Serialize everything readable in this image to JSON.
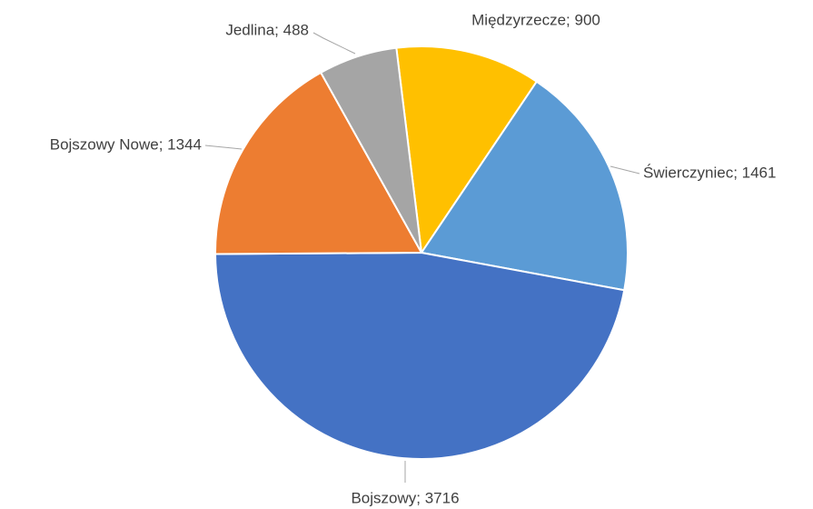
{
  "chart_data": {
    "type": "pie",
    "categories": [
      "Międzyrzecze",
      "Świerczyniec",
      "Bojszowy",
      "Bojszowy Nowe",
      "Jedlina"
    ],
    "values": [
      900,
      1461,
      3716,
      1344,
      488
    ],
    "value_labels": [
      "Międzyrzecze; 900",
      "Świerczyniec; 1461",
      "Bojszowy; 3716",
      "Bojszowy Nowe; 1344",
      "Jedlina; 488"
    ],
    "colors": [
      "#FFC000",
      "#5B9BD5",
      "#4472C4",
      "#ED7D31",
      "#A5A5A5"
    ]
  }
}
